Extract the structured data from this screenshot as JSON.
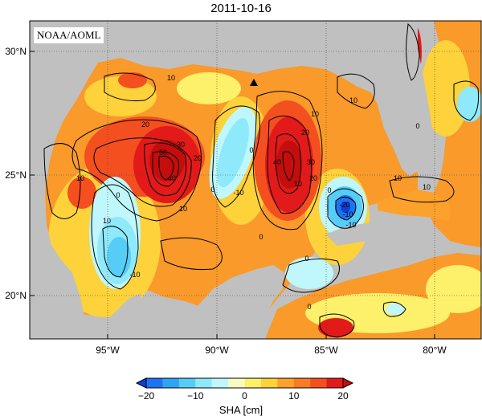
{
  "title": "2011-10-16",
  "credit": "NOAA/AOML",
  "lat_labels": [
    "30°N",
    "25°N",
    "20°N"
  ],
  "lon_labels": [
    "95°W",
    "90°W",
    "85°W",
    "80°W"
  ],
  "marker_icon": "triangle-marker-icon",
  "contour_labels": [
    "10",
    "10",
    "10",
    "10",
    "20",
    "30",
    "40",
    "50",
    "20",
    "10",
    "-10",
    "0",
    "0",
    "0",
    "-10",
    "0",
    "10",
    "20",
    "30",
    "40",
    "10",
    "20",
    "0",
    "-10",
    "-20",
    "-10",
    "0",
    "10",
    "10",
    "0",
    "0"
  ],
  "colorbar": {
    "label": "SHA [cm]",
    "ticks": [
      "−20",
      "−10",
      "0",
      "10",
      "20"
    ],
    "colors": [
      "#0a40d8",
      "#1e73f0",
      "#2fa4f5",
      "#55cdf7",
      "#8ee9fb",
      "#bff7fc",
      "#f7fbc2",
      "#fdf06a",
      "#fdd23a",
      "#fca12b",
      "#f97b22",
      "#f44f1f",
      "#e21a1a",
      "#c50d0d"
    ],
    "range": [
      -20,
      20
    ],
    "extend": "both"
  },
  "colors": {
    "land": "#c0c0c0",
    "ocean_background": "#f99a2a",
    "frame": "#000000"
  }
}
